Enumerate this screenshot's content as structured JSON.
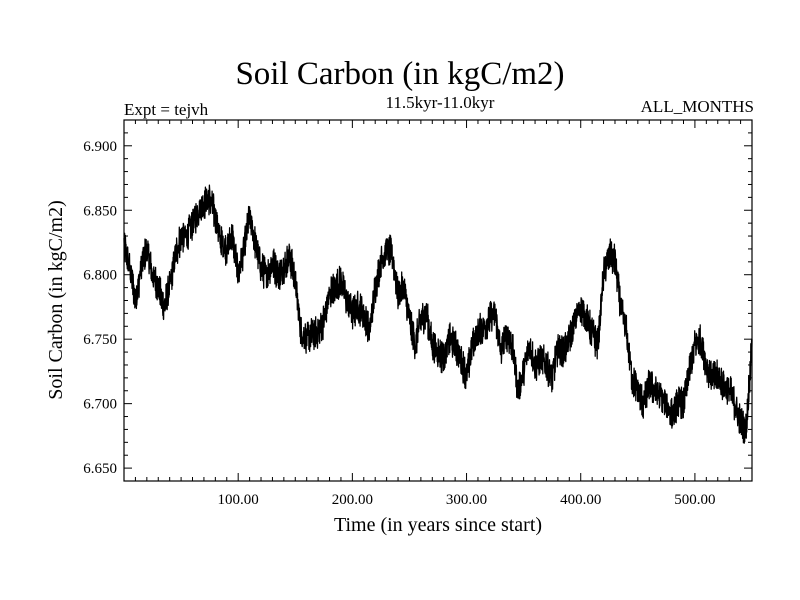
{
  "header": {
    "title": "Soil Carbon (in kgC/m2)",
    "subtitle": "11.5kyr-11.0kyr",
    "experiment": "Expt = tejvh",
    "months": "ALL_MONTHS"
  },
  "chart_data": {
    "type": "line",
    "title": "Soil Carbon (in kgC/m2)",
    "xlabel": "Time (in years since start)",
    "ylabel": "Soil Carbon (in kgC/m2)",
    "xlim": [
      0,
      550
    ],
    "ylim": [
      6.64,
      6.92
    ],
    "xticks": [
      100,
      200,
      300,
      400,
      500
    ],
    "xtick_labels": [
      "100.00",
      "200.00",
      "300.00",
      "400.00",
      "500.00"
    ],
    "yticks": [
      6.65,
      6.7,
      6.75,
      6.8,
      6.85,
      6.9
    ],
    "ytick_labels": [
      "6.650",
      "6.700",
      "6.750",
      "6.800",
      "6.850",
      "6.900"
    ],
    "grid": false,
    "line_color": "#000000",
    "series": [
      {
        "name": "Soil Carbon",
        "x": [
          0,
          5,
          10,
          15,
          20,
          25,
          30,
          35,
          40,
          45,
          50,
          55,
          60,
          65,
          70,
          75,
          80,
          85,
          90,
          95,
          100,
          105,
          110,
          115,
          120,
          125,
          130,
          135,
          140,
          145,
          150,
          155,
          160,
          165,
          170,
          175,
          180,
          185,
          190,
          195,
          200,
          205,
          210,
          215,
          220,
          225,
          230,
          235,
          240,
          245,
          250,
          255,
          260,
          265,
          270,
          275,
          280,
          285,
          290,
          295,
          300,
          305,
          310,
          315,
          320,
          325,
          330,
          335,
          340,
          345,
          350,
          355,
          360,
          365,
          370,
          375,
          380,
          385,
          390,
          395,
          400,
          405,
          410,
          415,
          420,
          425,
          430,
          435,
          440,
          445,
          450,
          455,
          460,
          465,
          470,
          475,
          480,
          485,
          490,
          495,
          500,
          505,
          510,
          515,
          520,
          525,
          530,
          535,
          540,
          545,
          550
        ],
        "y": [
          6.825,
          6.805,
          6.78,
          6.805,
          6.82,
          6.8,
          6.79,
          6.775,
          6.79,
          6.815,
          6.83,
          6.83,
          6.84,
          6.85,
          6.855,
          6.86,
          6.845,
          6.825,
          6.82,
          6.83,
          6.8,
          6.82,
          6.845,
          6.825,
          6.805,
          6.8,
          6.81,
          6.8,
          6.805,
          6.815,
          6.795,
          6.755,
          6.75,
          6.755,
          6.755,
          6.765,
          6.785,
          6.79,
          6.795,
          6.78,
          6.77,
          6.775,
          6.77,
          6.755,
          6.79,
          6.81,
          6.82,
          6.815,
          6.785,
          6.79,
          6.765,
          6.745,
          6.765,
          6.77,
          6.745,
          6.74,
          6.735,
          6.75,
          6.745,
          6.735,
          6.72,
          6.745,
          6.755,
          6.76,
          6.765,
          6.77,
          6.74,
          6.755,
          6.745,
          6.71,
          6.725,
          6.745,
          6.73,
          6.735,
          6.73,
          6.72,
          6.745,
          6.74,
          6.75,
          6.765,
          6.775,
          6.765,
          6.755,
          6.745,
          6.8,
          6.815,
          6.81,
          6.775,
          6.755,
          6.72,
          6.71,
          6.7,
          6.715,
          6.71,
          6.705,
          6.7,
          6.69,
          6.7,
          6.7,
          6.725,
          6.745,
          6.75,
          6.73,
          6.72,
          6.72,
          6.715,
          6.71,
          6.7,
          6.685,
          6.68,
          6.75
        ]
      }
    ]
  }
}
